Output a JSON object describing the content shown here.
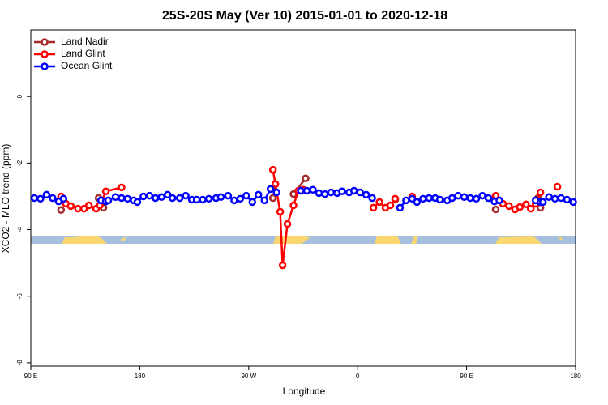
{
  "chart_data": {
    "type": "line",
    "title": "25S-20S May (Ver 10)   2015-01-01 to 2020-12-18",
    "x_label": "Longitude",
    "y_label": "XCO2 - MLO trend (ppm)",
    "xlim": [
      90,
      540
    ],
    "xticks": [
      {
        "value": 90,
        "label": "90 E"
      },
      180,
      {
        "value": 270,
        "label": "90 W"
      },
      {
        "value": 360,
        "label": "0"
      },
      {
        "value": 450,
        "label": "90 E"
      },
      {
        "value": 540,
        "label": "180"
      }
    ],
    "ylim": [
      -8.1,
      2
    ],
    "yticks": [
      0,
      -2,
      -4,
      -6,
      -8
    ],
    "legend": "topleft",
    "series": [
      {
        "name": "Land Nadir",
        "color": "#a52a2a",
        "x": [
          115,
          null,
          146,
          150,
          null,
          290,
          292,
          null,
          307,
          317,
          null,
          391,
          null,
          474,
          null,
          509,
          511
        ],
        "values": [
          -3.41,
          null,
          -3.05,
          -3.34,
          null,
          -3.05,
          -2.63,
          null,
          -2.93,
          -2.46,
          null,
          -3.1,
          null,
          -3.39,
          null,
          -3.05,
          -3.34
        ]
      },
      {
        "name": "Land Glint",
        "color": "#ff0000",
        "x": [
          115,
          119,
          123,
          129,
          134,
          138,
          144,
          147,
          152,
          165,
          null,
          290,
          292,
          296,
          298,
          302,
          307,
          311,
          315,
          null,
          373,
          378,
          383,
          387,
          391,
          null,
          405,
          null,
          474,
          480,
          485,
          490,
          494,
          499,
          503,
          507,
          511,
          null,
          525
        ],
        "values": [
          -3.0,
          -3.22,
          -3.29,
          -3.37,
          -3.37,
          -3.27,
          -3.37,
          -3.27,
          -2.85,
          -2.73,
          null,
          -2.2,
          -2.63,
          -3.46,
          -5.07,
          -3.83,
          -3.27,
          -2.83,
          -2.8,
          null,
          -3.34,
          -3.17,
          -3.34,
          -3.27,
          -3.07,
          null,
          -3.0,
          null,
          -2.98,
          -3.22,
          -3.29,
          -3.39,
          -3.32,
          -3.24,
          -3.37,
          -3.22,
          -2.88,
          null,
          -2.71
        ]
      },
      {
        "name": "Ocean Glint",
        "color": "#0000ff",
        "x": [
          93,
          98,
          103,
          108,
          113,
          117,
          null,
          148,
          152,
          154,
          160,
          165,
          170,
          175,
          178,
          183,
          188,
          193,
          198,
          203,
          207,
          213,
          218,
          223,
          227,
          232,
          237,
          243,
          247,
          253,
          258,
          263,
          268,
          273,
          278,
          283,
          288,
          293,
          null,
          313,
          318,
          323,
          328,
          333,
          338,
          343,
          347,
          353,
          357,
          362,
          367,
          372,
          null,
          395,
          400,
          405,
          409,
          414,
          419,
          424,
          428,
          434,
          438,
          443,
          448,
          453,
          458,
          463,
          468,
          473,
          477,
          null,
          507,
          511,
          513,
          518,
          523,
          528,
          533,
          538
        ],
        "values": [
          -3.05,
          -3.07,
          -2.95,
          -3.05,
          -3.15,
          -3.07,
          null,
          -3.12,
          -3.15,
          -3.12,
          -3.02,
          -3.05,
          -3.07,
          -3.12,
          -3.17,
          -3.0,
          -2.98,
          -3.05,
          -3.02,
          -2.95,
          -3.05,
          -3.05,
          -2.98,
          -3.1,
          -3.1,
          -3.1,
          -3.07,
          -3.05,
          -3.02,
          -2.98,
          -3.12,
          -3.07,
          -2.98,
          -3.17,
          -2.95,
          -3.12,
          -2.78,
          -2.88,
          null,
          -2.83,
          -2.83,
          -2.8,
          -2.9,
          -2.93,
          -2.88,
          -2.9,
          -2.85,
          -2.88,
          -2.83,
          -2.88,
          -2.95,
          -3.05,
          null,
          -3.34,
          -3.12,
          -3.07,
          -3.17,
          -3.07,
          -3.05,
          -3.05,
          -3.1,
          -3.12,
          -3.05,
          -2.98,
          -3.02,
          -3.05,
          -3.07,
          -2.98,
          -3.05,
          -3.15,
          -3.12,
          null,
          -3.12,
          -3.17,
          -3.17,
          -3.02,
          -3.07,
          -3.05,
          -3.1,
          -3.17
        ]
      }
    ]
  }
}
